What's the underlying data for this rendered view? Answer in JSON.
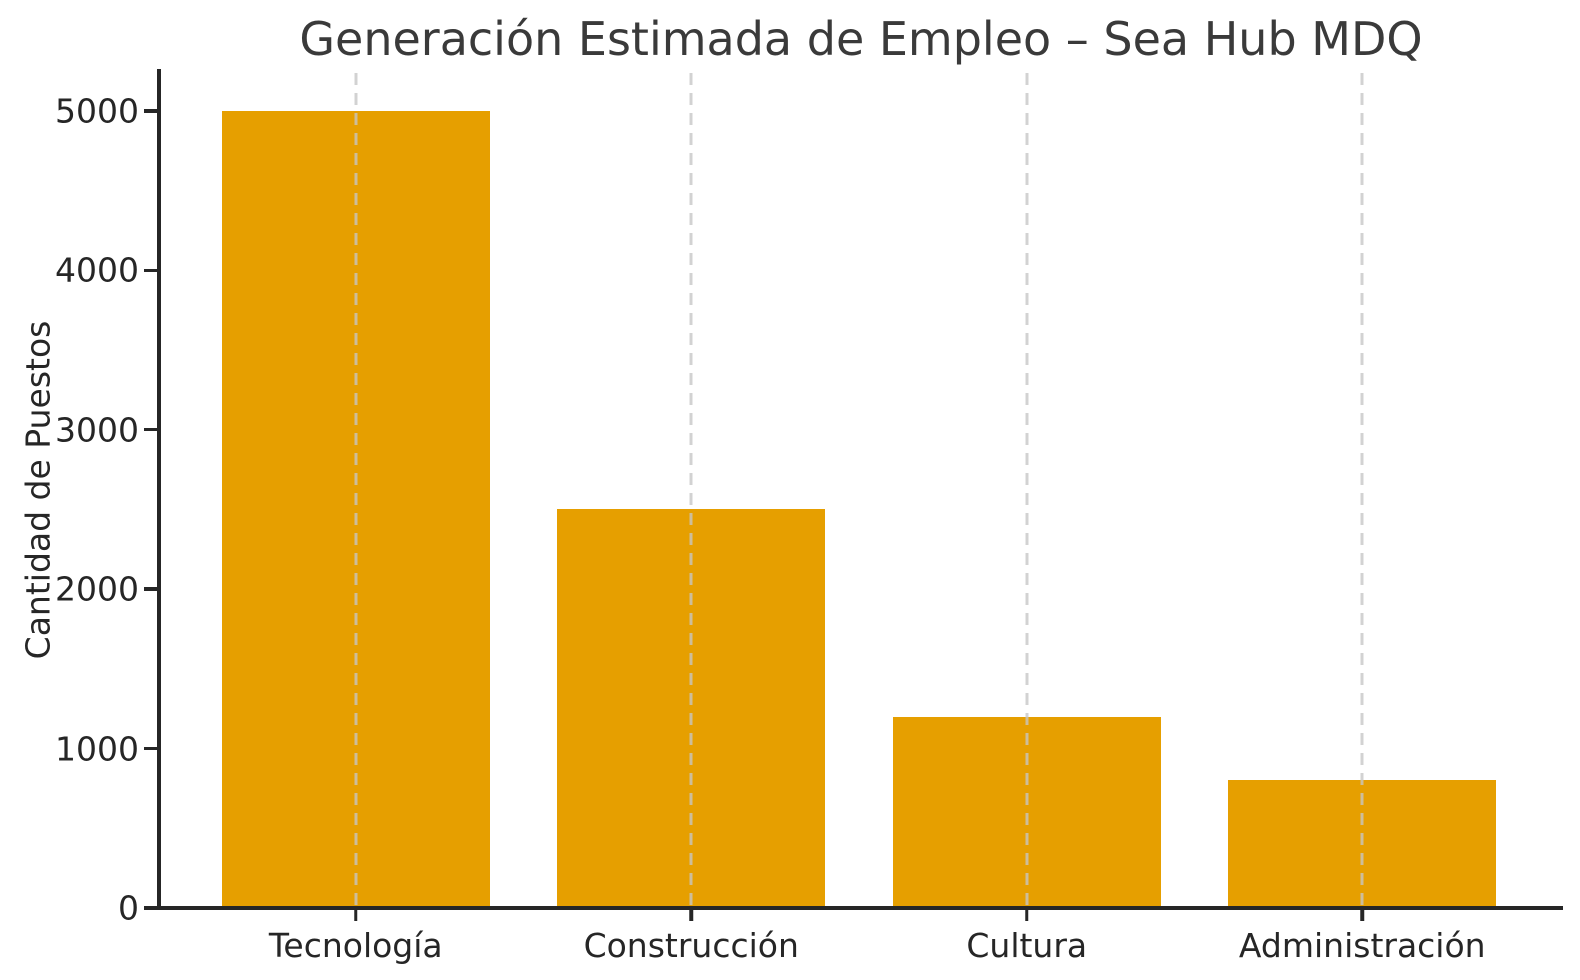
{
  "chart_data": {
    "type": "bar",
    "title": "Generación Estimada de Empleo – Sea Hub MDQ",
    "xlabel": "",
    "ylabel": "Cantidad de Puestos",
    "categories": [
      "Tecnología",
      "Construcción",
      "Cultura",
      "Administración"
    ],
    "values": [
      5000,
      2500,
      1200,
      800
    ],
    "ylim": [
      0,
      5250
    ],
    "yticks": [
      0,
      1000,
      2000,
      3000,
      4000,
      5000
    ],
    "grid": "vertical dashed gridlines at category centers, drawn over bars",
    "legend_position": "none",
    "colors": {
      "bar": "#E69F00",
      "grid": "#c6c6c6",
      "axis": "#262626",
      "title_text": "#3a3a3a",
      "background": "#ffffff"
    }
  }
}
